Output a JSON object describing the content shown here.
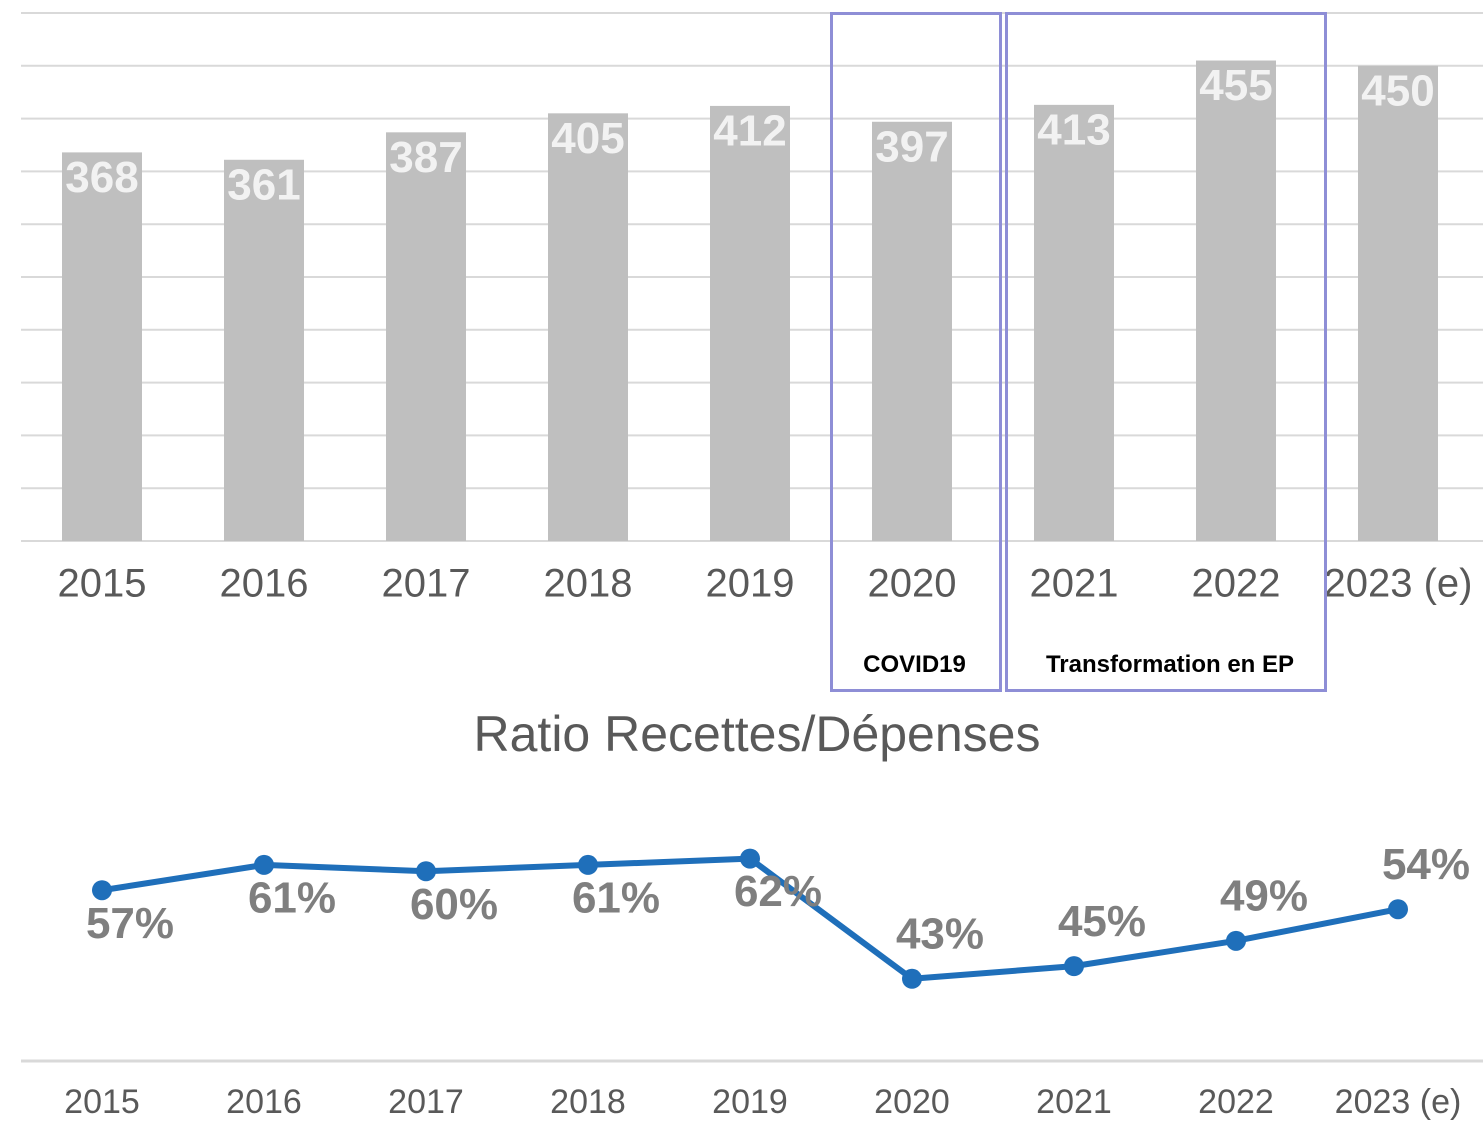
{
  "chart_data": [
    {
      "type": "bar",
      "categories": [
        "2015",
        "2016",
        "2017",
        "2018",
        "2019",
        "2020",
        "2021",
        "2022",
        "2023 (e)"
      ],
      "values": [
        368,
        361,
        387,
        405,
        412,
        397,
        413,
        455,
        450
      ],
      "color": "#bfbfbf",
      "ylim": [
        0,
        500
      ],
      "yticks": [
        0,
        50,
        100,
        150,
        200,
        250,
        300,
        350,
        400,
        450,
        500
      ],
      "grid": true,
      "annotations": [
        "COVID19",
        "Transformation en EP"
      ]
    },
    {
      "type": "line",
      "title": "Ratio Recettes/Dépenses",
      "categories": [
        "2015",
        "2016",
        "2017",
        "2018",
        "2019",
        "2020",
        "2021",
        "2022",
        "2023 (e)"
      ],
      "values": [
        57,
        61,
        60,
        61,
        62,
        43,
        45,
        49,
        54
      ],
      "value_labels": [
        "57%",
        "61%",
        "60%",
        "61%",
        "62%",
        "43%",
        "45%",
        "49%",
        "54%"
      ],
      "color": "#1f6fba",
      "ylim": [
        30,
        70
      ]
    }
  ]
}
